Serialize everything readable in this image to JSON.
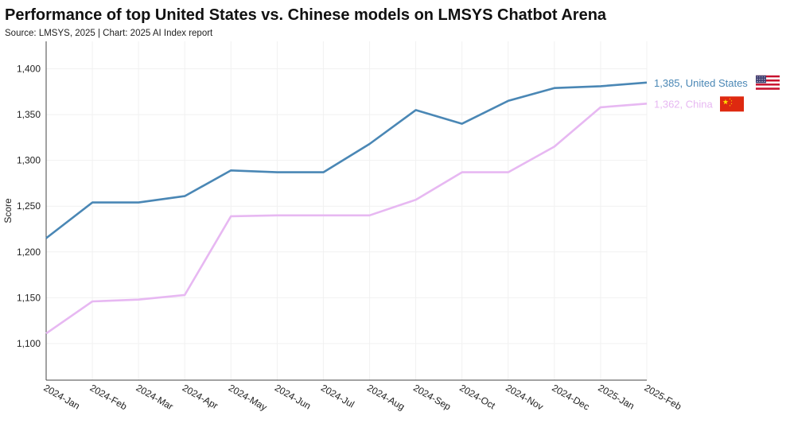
{
  "title": "Performance of top United States vs. Chinese models on LMSYS Chatbot Arena",
  "source": "Source: LMSYS, 2025 | Chart: 2025 AI Index report",
  "colors": {
    "us": "#4a87b5",
    "china": "#e7b8f2"
  },
  "chart_data": {
    "type": "line",
    "title": "Performance of top United States vs. Chinese models on LMSYS Chatbot Arena",
    "subtitle": "Source: LMSYS, 2025 | Chart: 2025 AI Index report",
    "xlabel": "",
    "ylabel": "Score",
    "ylim": [
      1060,
      1430
    ],
    "yticks": [
      1100,
      1150,
      1200,
      1250,
      1300,
      1350,
      1400
    ],
    "ytick_labels": [
      "1,100",
      "1,150",
      "1,200",
      "1,250",
      "1,300",
      "1,350",
      "1,400"
    ],
    "categories": [
      "2024-Jan",
      "2024-Feb",
      "2024-Mar",
      "2024-Apr",
      "2024-May",
      "2024-Jun",
      "2024-Jul",
      "2024-Aug",
      "2024-Sep",
      "2024-Oct",
      "2024-Nov",
      "2024-Dec",
      "2025-Jan",
      "2025-Feb"
    ],
    "grid": true,
    "legend": "end-of-line labels",
    "series": [
      {
        "key": "us",
        "name": "United States",
        "label": "1,385, United States",
        "icon": "us-flag-icon",
        "values": [
          1215,
          1254,
          1254,
          1261,
          1289,
          1287,
          1287,
          1318,
          1355,
          1340,
          1365,
          1379,
          1381,
          1385
        ]
      },
      {
        "key": "china",
        "name": "China",
        "label": "1,362, China",
        "icon": "china-flag-icon",
        "values": [
          1111,
          1146,
          1148,
          1153,
          1239,
          1240,
          1240,
          1240,
          1257,
          1287,
          1287,
          1315,
          1358,
          1362
        ]
      }
    ]
  }
}
